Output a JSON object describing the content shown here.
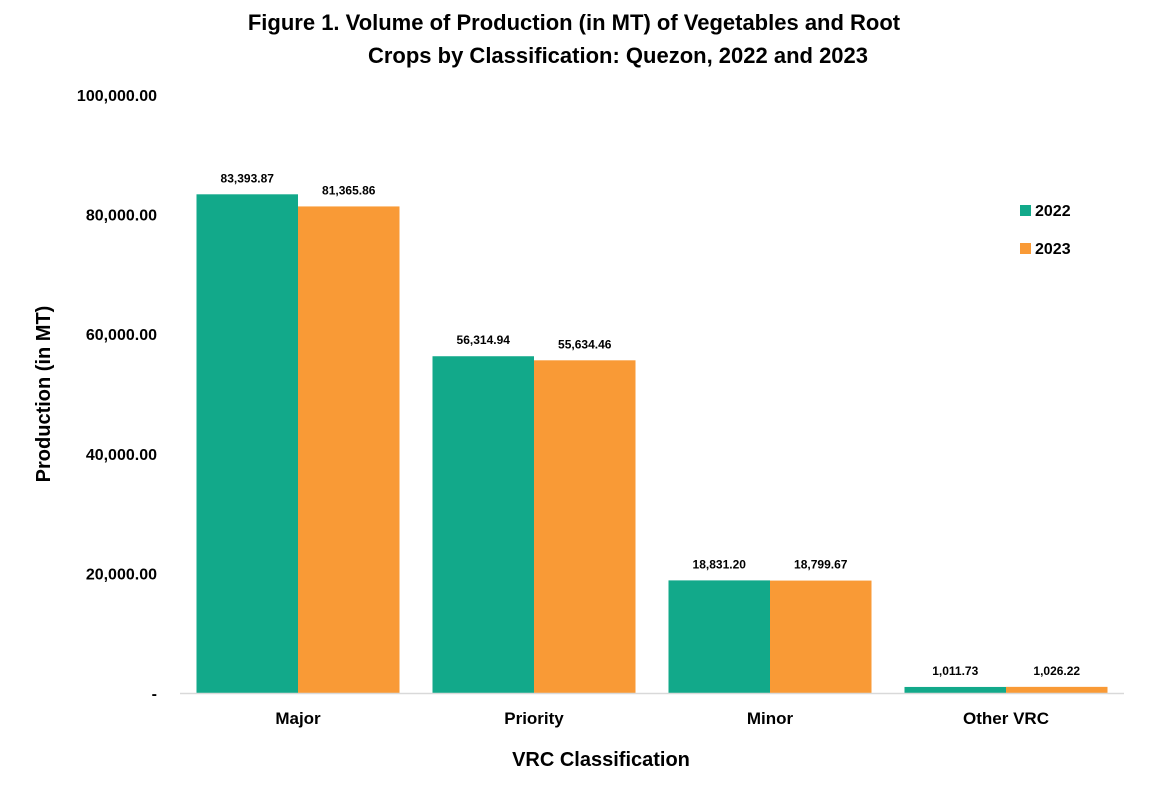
{
  "chart_data": {
    "type": "bar",
    "title_lines": [
      "Figure 1. Volume of Production (in MT) of Vegetables and Root",
      "Crops by Classification: Quezon, 2022 and 2023"
    ],
    "xlabel": "VRC Classification",
    "ylabel": "Production (in MT)",
    "categories": [
      "Major",
      "Priority",
      "Minor",
      "Other VRC"
    ],
    "series": [
      {
        "name": "2022",
        "color": "#12a98a",
        "values": [
          83393.87,
          56314.94,
          18831.2,
          1011.73
        ],
        "labels": [
          "83,393.87",
          "56,314.94",
          "18,831.20",
          "1,011.73"
        ]
      },
      {
        "name": "2023",
        "color": "#f99a36",
        "values": [
          81365.86,
          55634.46,
          18799.67,
          1026.22
        ],
        "labels": [
          "81,365.86",
          "55,634.46",
          "18,799.67",
          "1,026.22"
        ]
      }
    ],
    "ylim": [
      0,
      100000
    ],
    "yticks": [
      0,
      20000,
      40000,
      60000,
      80000,
      100000
    ],
    "ytick_labels": [
      "-",
      "20,000.00",
      "40,000.00",
      "60,000.00",
      "80,000.00",
      "100,000.00"
    ],
    "grid": false,
    "legend_position": "top-right",
    "axis_color": "#d9d9d9"
  }
}
